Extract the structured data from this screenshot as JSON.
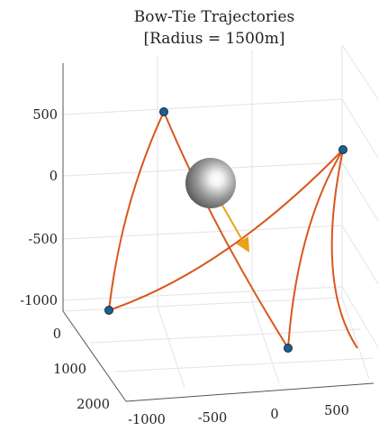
{
  "chart_data": {
    "type": "line",
    "title": [
      "Bow-Tie Trajectories",
      "[Radius = 1500m]"
    ],
    "z_ticks": [
      "500",
      "0",
      "-500",
      "-1000"
    ],
    "y_ticks": [
      "0",
      "1000",
      "2000"
    ],
    "x_ticks": [
      "-1000",
      "-500",
      "0",
      "500"
    ],
    "grid": true,
    "colors": {
      "trajectory": "#d9571c",
      "vector": "#e8a317",
      "nodes": "#1f5f8b",
      "sphere": "#8a8a8a"
    },
    "series": [
      {
        "points": [
          {
            "x": -300,
            "y": -100,
            "z": 500
          },
          {
            "x": 600,
            "y": 200,
            "z": 0
          },
          {
            "x": 300,
            "y": 1600,
            "z": -1000
          },
          {
            "x": -1100,
            "y": 700,
            "z": -1000
          },
          {
            "x": -300,
            "y": -100,
            "z": 500
          }
        ]
      }
    ]
  }
}
